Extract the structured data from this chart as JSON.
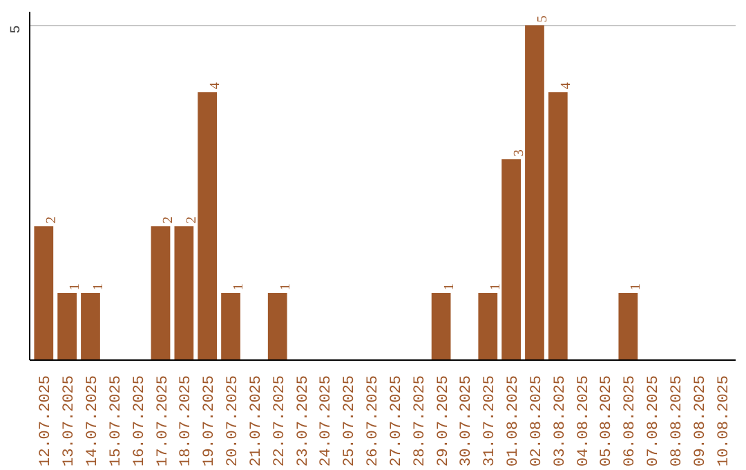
{
  "chart_data": {
    "type": "bar",
    "categories": [
      "12.07.2025",
      "13.07.2025",
      "14.07.2025",
      "15.07.2025",
      "16.07.2025",
      "17.07.2025",
      "18.07.2025",
      "19.07.2025",
      "20.07.2025",
      "21.07.2025",
      "22.07.2025",
      "23.07.2025",
      "24.07.2025",
      "25.07.2025",
      "26.07.2025",
      "27.07.2025",
      "28.07.2025",
      "29.07.2025",
      "30.07.2025",
      "31.07.2025",
      "01.08.2025",
      "02.08.2025",
      "03.08.2025",
      "04.08.2025",
      "05.08.2025",
      "06.08.2025",
      "07.08.2025",
      "08.08.2025",
      "09.08.2025",
      "10.08.2025"
    ],
    "values": [
      2,
      1,
      1,
      0,
      0,
      2,
      2,
      4,
      1,
      0,
      1,
      0,
      0,
      0,
      0,
      0,
      0,
      1,
      0,
      1,
      3,
      5,
      4,
      0,
      0,
      1,
      0,
      0,
      0,
      0
    ],
    "value_labels": [
      "2",
      "1",
      "1",
      null,
      null,
      "2",
      "2",
      "4",
      "1",
      null,
      "1",
      null,
      null,
      null,
      null,
      null,
      null,
      "1",
      null,
      "1",
      "3",
      "5",
      "4",
      null,
      null,
      "1",
      null,
      null,
      null,
      null
    ],
    "color": "#a0582a",
    "ylim": [
      0,
      5.2
    ],
    "yticks": [
      5
    ],
    "grid": "y"
  }
}
